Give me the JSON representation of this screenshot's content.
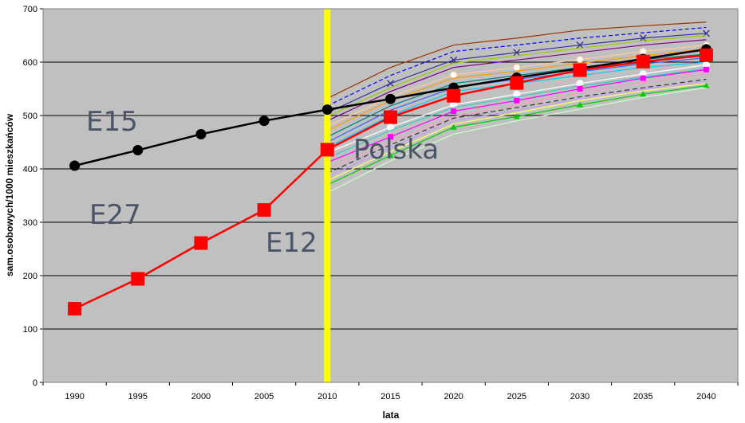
{
  "chart_data": {
    "type": "line",
    "title": "",
    "xlabel": "lata",
    "ylabel": "sam.osobowych/1000 mieszkańców",
    "categories": [
      "1990",
      "1995",
      "2000",
      "2005",
      "2010",
      "2015",
      "2020",
      "2025",
      "2030",
      "2035",
      "2040"
    ],
    "ylim": [
      0,
      700
    ],
    "yticks": [
      0,
      100,
      200,
      300,
      400,
      500,
      600,
      700
    ],
    "grid": true,
    "plot_background": "#c0c0c0",
    "highlight_category": "2010",
    "highlight_color": "#ffff00",
    "annotations": [
      "E15",
      "E27",
      "E12",
      "Polska"
    ],
    "series": [
      {
        "color": "#000000",
        "marker": "circle",
        "values": [
          406,
          435,
          465,
          490,
          511,
          531,
          552,
          571,
          588,
          606,
          624
        ]
      },
      {
        "color": "#ff0000",
        "marker": "square",
        "values": [
          138,
          194,
          261,
          323,
          436,
          497,
          537,
          561,
          585,
          601,
          613
        ]
      }
    ],
    "fan_lines": [
      {
        "color": "#993300",
        "dash": "",
        "marker": "",
        "values": [
          532,
          590,
          632,
          645,
          660,
          668,
          675
        ]
      },
      {
        "color": "#0000ff",
        "dash": "5,3",
        "marker": "",
        "values": [
          518,
          575,
          620,
          632,
          645,
          655,
          665
        ]
      },
      {
        "color": "#333399",
        "dash": "",
        "marker": "x",
        "values": [
          505,
          560,
          604,
          618,
          632,
          645,
          654
        ]
      },
      {
        "color": "#99cc00",
        "dash": "",
        "marker": "",
        "values": [
          498,
          552,
          598,
          612,
          626,
          640,
          650
        ]
      },
      {
        "color": "#800080",
        "dash": "",
        "marker": "",
        "values": [
          490,
          545,
          590,
          604,
          618,
          632,
          642
        ]
      },
      {
        "color": "#ffcc99",
        "dash": "",
        "marker": "circle-open",
        "values": [
          480,
          535,
          576,
          590,
          605,
          620,
          632
        ]
      },
      {
        "color": "#ff9900",
        "dash": "",
        "marker": "",
        "values": [
          472,
          528,
          570,
          583,
          598,
          612,
          625
        ]
      },
      {
        "color": "#008080",
        "dash": "",
        "marker": "",
        "values": [
          460,
          518,
          560,
          575,
          590,
          605,
          615
        ]
      },
      {
        "color": "#3366ff",
        "dash": "",
        "marker": "",
        "values": [
          450,
          510,
          552,
          568,
          582,
          597,
          608
        ]
      },
      {
        "color": "#00ccff",
        "dash": "",
        "marker": "",
        "values": [
          440,
          500,
          545,
          560,
          575,
          590,
          600
        ]
      },
      {
        "color": "#ffffff",
        "dash": "",
        "marker": "circle-open",
        "values": [
          430,
          478,
          520,
          540,
          560,
          578,
          595
        ]
      },
      {
        "color": "#33cccc",
        "dash": "",
        "marker": "",
        "values": [
          420,
          472,
          515,
          535,
          555,
          572,
          588
        ]
      },
      {
        "color": "#ff00ff",
        "dash": "",
        "marker": "square",
        "values": [
          412,
          460,
          508,
          528,
          550,
          570,
          586
        ]
      },
      {
        "color": "#ff99cc",
        "dash": "",
        "marker": "",
        "values": [
          400,
          450,
          498,
          520,
          542,
          562,
          578
        ]
      },
      {
        "color": "#333333",
        "dash": "6,4",
        "marker": "",
        "values": [
          392,
          445,
          495,
          515,
          535,
          552,
          568
        ]
      },
      {
        "color": "#cc99ff",
        "dash": "",
        "marker": "",
        "values": [
          385,
          440,
          490,
          510,
          532,
          550,
          565
        ]
      },
      {
        "color": "#ffff66",
        "dash": "",
        "marker": "",
        "values": [
          378,
          432,
          484,
          505,
          528,
          546,
          560
        ]
      },
      {
        "color": "#00cc00",
        "dash": "",
        "marker": "triangle",
        "values": [
          370,
          425,
          478,
          498,
          520,
          540,
          556
        ]
      },
      {
        "color": "#ccffcc",
        "dash": "",
        "marker": "",
        "values": [
          355,
          415,
          465,
          490,
          512,
          534,
          552
        ]
      }
    ]
  }
}
